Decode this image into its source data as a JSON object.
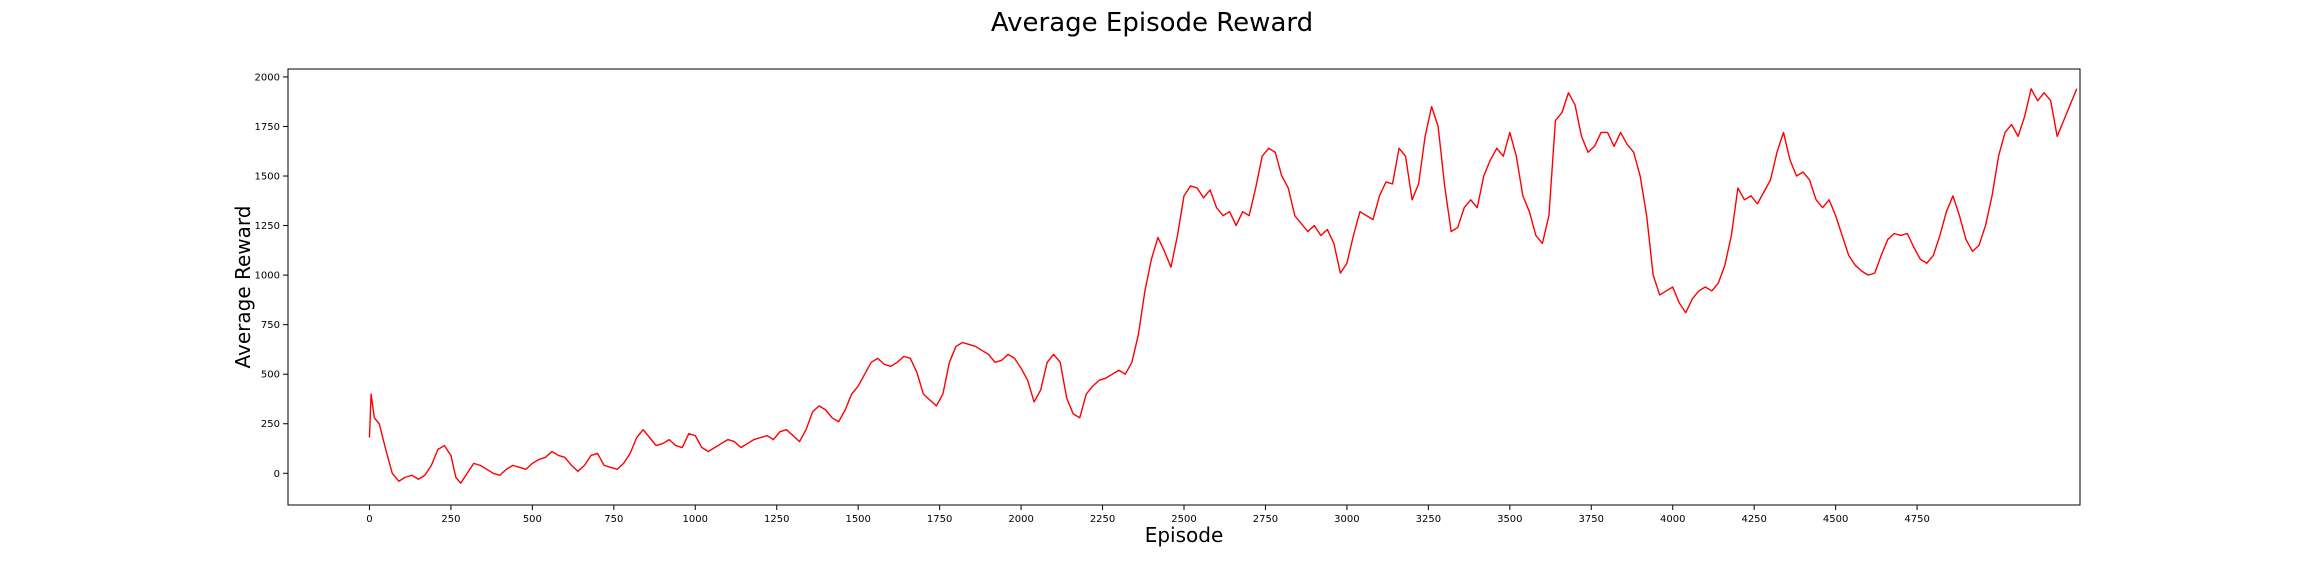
{
  "chart_data": {
    "type": "line",
    "title": "Average Episode Reward",
    "xlabel": "Episode",
    "ylabel": "Average Reward",
    "xlim": [
      -250,
      5250
    ],
    "ylim": [
      -160,
      2040
    ],
    "x_ticks": [
      0,
      250,
      500,
      750,
      1000,
      1250,
      1500,
      1750,
      2000,
      2250,
      2500,
      2750,
      3000,
      3250,
      3500,
      3750,
      4000,
      4250,
      4500,
      4750
    ],
    "y_ticks": [
      0,
      250,
      500,
      750,
      1000,
      1250,
      1500,
      1750,
      2000
    ],
    "grid": false,
    "legend": "none",
    "series": [
      {
        "color": "#ff0000",
        "points": [
          [
            0,
            180
          ],
          [
            5,
            400
          ],
          [
            15,
            280
          ],
          [
            30,
            250
          ],
          [
            50,
            120
          ],
          [
            70,
            0
          ],
          [
            90,
            -40
          ],
          [
            110,
            -20
          ],
          [
            130,
            -10
          ],
          [
            150,
            -30
          ],
          [
            170,
            -10
          ],
          [
            190,
            40
          ],
          [
            210,
            120
          ],
          [
            230,
            140
          ],
          [
            250,
            90
          ],
          [
            265,
            -20
          ],
          [
            280,
            -50
          ],
          [
            300,
            0
          ],
          [
            320,
            50
          ],
          [
            340,
            40
          ],
          [
            360,
            20
          ],
          [
            380,
            0
          ],
          [
            400,
            -10
          ],
          [
            420,
            20
          ],
          [
            440,
            40
          ],
          [
            460,
            30
          ],
          [
            480,
            20
          ],
          [
            500,
            50
          ],
          [
            520,
            70
          ],
          [
            540,
            80
          ],
          [
            560,
            110
          ],
          [
            580,
            90
          ],
          [
            600,
            80
          ],
          [
            620,
            40
          ],
          [
            640,
            10
          ],
          [
            660,
            40
          ],
          [
            680,
            90
          ],
          [
            700,
            100
          ],
          [
            720,
            40
          ],
          [
            740,
            30
          ],
          [
            760,
            20
          ],
          [
            780,
            50
          ],
          [
            800,
            100
          ],
          [
            820,
            180
          ],
          [
            840,
            220
          ],
          [
            860,
            180
          ],
          [
            880,
            140
          ],
          [
            900,
            150
          ],
          [
            920,
            170
          ],
          [
            940,
            140
          ],
          [
            960,
            130
          ],
          [
            980,
            200
          ],
          [
            1000,
            190
          ],
          [
            1020,
            130
          ],
          [
            1040,
            110
          ],
          [
            1060,
            130
          ],
          [
            1080,
            150
          ],
          [
            1100,
            170
          ],
          [
            1120,
            160
          ],
          [
            1140,
            130
          ],
          [
            1160,
            150
          ],
          [
            1180,
            170
          ],
          [
            1200,
            180
          ],
          [
            1220,
            190
          ],
          [
            1240,
            170
          ],
          [
            1260,
            210
          ],
          [
            1280,
            220
          ],
          [
            1300,
            190
          ],
          [
            1320,
            160
          ],
          [
            1340,
            220
          ],
          [
            1360,
            310
          ],
          [
            1380,
            340
          ],
          [
            1400,
            320
          ],
          [
            1420,
            280
          ],
          [
            1440,
            260
          ],
          [
            1460,
            320
          ],
          [
            1480,
            400
          ],
          [
            1500,
            440
          ],
          [
            1520,
            500
          ],
          [
            1540,
            560
          ],
          [
            1560,
            580
          ],
          [
            1580,
            550
          ],
          [
            1600,
            540
          ],
          [
            1620,
            560
          ],
          [
            1640,
            590
          ],
          [
            1660,
            580
          ],
          [
            1680,
            510
          ],
          [
            1700,
            400
          ],
          [
            1720,
            370
          ],
          [
            1740,
            340
          ],
          [
            1760,
            400
          ],
          [
            1780,
            560
          ],
          [
            1800,
            640
          ],
          [
            1820,
            660
          ],
          [
            1840,
            650
          ],
          [
            1860,
            640
          ],
          [
            1880,
            620
          ],
          [
            1900,
            600
          ],
          [
            1920,
            560
          ],
          [
            1940,
            570
          ],
          [
            1960,
            600
          ],
          [
            1980,
            580
          ],
          [
            2000,
            530
          ],
          [
            2020,
            470
          ],
          [
            2040,
            360
          ],
          [
            2060,
            420
          ],
          [
            2080,
            560
          ],
          [
            2100,
            600
          ],
          [
            2120,
            560
          ],
          [
            2140,
            380
          ],
          [
            2160,
            300
          ],
          [
            2180,
            280
          ],
          [
            2200,
            400
          ],
          [
            2220,
            440
          ],
          [
            2240,
            470
          ],
          [
            2260,
            480
          ],
          [
            2280,
            500
          ],
          [
            2300,
            520
          ],
          [
            2320,
            500
          ],
          [
            2340,
            560
          ],
          [
            2360,
            700
          ],
          [
            2380,
            920
          ],
          [
            2400,
            1080
          ],
          [
            2420,
            1190
          ],
          [
            2440,
            1120
          ],
          [
            2460,
            1040
          ],
          [
            2480,
            1200
          ],
          [
            2500,
            1400
          ],
          [
            2520,
            1450
          ],
          [
            2540,
            1440
          ],
          [
            2560,
            1390
          ],
          [
            2580,
            1430
          ],
          [
            2600,
            1340
          ],
          [
            2620,
            1300
          ],
          [
            2640,
            1320
          ],
          [
            2660,
            1250
          ],
          [
            2680,
            1320
          ],
          [
            2700,
            1300
          ],
          [
            2720,
            1440
          ],
          [
            2740,
            1600
          ],
          [
            2760,
            1640
          ],
          [
            2780,
            1620
          ],
          [
            2800,
            1500
          ],
          [
            2820,
            1440
          ],
          [
            2840,
            1300
          ],
          [
            2860,
            1260
          ],
          [
            2880,
            1220
          ],
          [
            2900,
            1250
          ],
          [
            2920,
            1200
          ],
          [
            2940,
            1230
          ],
          [
            2960,
            1160
          ],
          [
            2980,
            1010
          ],
          [
            3000,
            1060
          ],
          [
            3020,
            1200
          ],
          [
            3040,
            1320
          ],
          [
            3060,
            1300
          ],
          [
            3080,
            1280
          ],
          [
            3100,
            1400
          ],
          [
            3120,
            1470
          ],
          [
            3140,
            1460
          ],
          [
            3160,
            1640
          ],
          [
            3180,
            1600
          ],
          [
            3200,
            1380
          ],
          [
            3220,
            1460
          ],
          [
            3240,
            1700
          ],
          [
            3260,
            1850
          ],
          [
            3280,
            1750
          ],
          [
            3300,
            1450
          ],
          [
            3320,
            1220
          ],
          [
            3340,
            1240
          ],
          [
            3360,
            1340
          ],
          [
            3380,
            1380
          ],
          [
            3400,
            1340
          ],
          [
            3420,
            1500
          ],
          [
            3440,
            1580
          ],
          [
            3460,
            1640
          ],
          [
            3480,
            1600
          ],
          [
            3500,
            1720
          ],
          [
            3520,
            1600
          ],
          [
            3540,
            1400
          ],
          [
            3560,
            1320
          ],
          [
            3580,
            1200
          ],
          [
            3600,
            1160
          ],
          [
            3620,
            1300
          ],
          [
            3640,
            1780
          ],
          [
            3660,
            1820
          ],
          [
            3680,
            1920
          ],
          [
            3700,
            1860
          ],
          [
            3720,
            1700
          ],
          [
            3740,
            1620
          ],
          [
            3760,
            1650
          ],
          [
            3780,
            1720
          ],
          [
            3800,
            1720
          ],
          [
            3820,
            1650
          ],
          [
            3840,
            1720
          ],
          [
            3860,
            1660
          ],
          [
            3880,
            1620
          ],
          [
            3900,
            1500
          ],
          [
            3920,
            1300
          ],
          [
            3940,
            1000
          ],
          [
            3960,
            900
          ],
          [
            3980,
            920
          ],
          [
            4000,
            940
          ],
          [
            4020,
            860
          ],
          [
            4040,
            810
          ],
          [
            4060,
            880
          ],
          [
            4080,
            920
          ],
          [
            4100,
            940
          ],
          [
            4120,
            920
          ],
          [
            4140,
            960
          ],
          [
            4160,
            1050
          ],
          [
            4180,
            1200
          ],
          [
            4200,
            1440
          ],
          [
            4220,
            1380
          ],
          [
            4240,
            1400
          ],
          [
            4260,
            1360
          ],
          [
            4280,
            1420
          ],
          [
            4300,
            1480
          ],
          [
            4320,
            1620
          ],
          [
            4340,
            1720
          ],
          [
            4360,
            1580
          ],
          [
            4380,
            1500
          ],
          [
            4400,
            1520
          ],
          [
            4420,
            1480
          ],
          [
            4440,
            1380
          ],
          [
            4460,
            1340
          ],
          [
            4480,
            1380
          ],
          [
            4500,
            1300
          ],
          [
            4520,
            1200
          ],
          [
            4540,
            1100
          ],
          [
            4560,
            1050
          ],
          [
            4580,
            1020
          ],
          [
            4600,
            1000
          ],
          [
            4620,
            1010
          ],
          [
            4640,
            1100
          ],
          [
            4660,
            1180
          ],
          [
            4680,
            1210
          ],
          [
            4700,
            1200
          ],
          [
            4720,
            1210
          ],
          [
            4740,
            1140
          ],
          [
            4760,
            1080
          ],
          [
            4780,
            1060
          ],
          [
            4800,
            1100
          ],
          [
            4820,
            1200
          ],
          [
            4840,
            1320
          ],
          [
            4860,
            1400
          ],
          [
            4880,
            1300
          ],
          [
            4900,
            1180
          ],
          [
            4920,
            1120
          ],
          [
            4940,
            1150
          ],
          [
            4960,
            1250
          ],
          [
            4980,
            1400
          ],
          [
            5000,
            1600
          ],
          [
            5020,
            1720
          ],
          [
            5040,
            1760
          ],
          [
            5060,
            1700
          ],
          [
            5080,
            1800
          ],
          [
            5100,
            1940
          ],
          [
            5120,
            1880
          ],
          [
            5140,
            1920
          ],
          [
            5160,
            1880
          ],
          [
            5180,
            1700
          ],
          [
            5200,
            1780
          ],
          [
            5220,
            1860
          ],
          [
            5240,
            1940
          ]
        ]
      }
    ]
  }
}
